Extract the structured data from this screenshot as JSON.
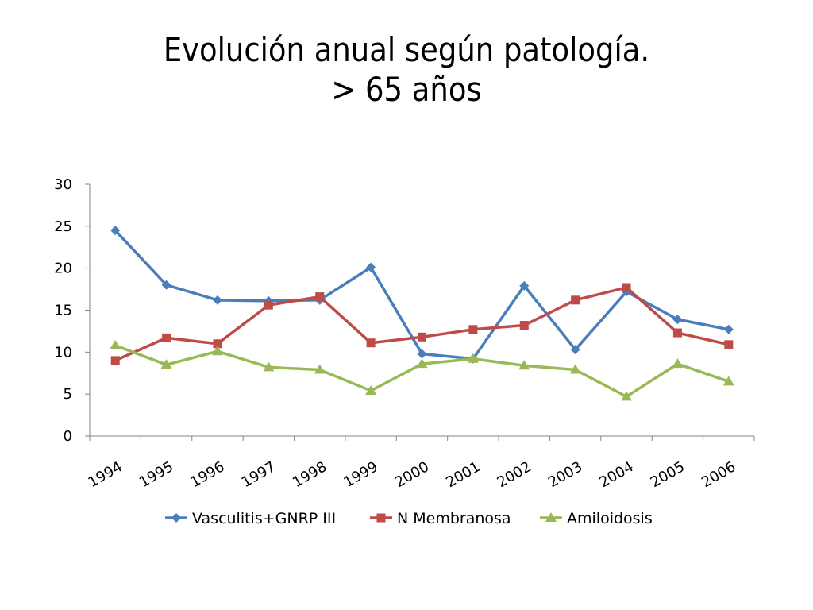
{
  "title_line1": "Evolución anual según patología.",
  "title_line2": "> 65 años",
  "chart_data": {
    "type": "line",
    "x": [
      "1994",
      "1995",
      "1996",
      "1997",
      "1998",
      "1999",
      "2000",
      "2001",
      "2002",
      "2003",
      "2004",
      "2005",
      "2006"
    ],
    "ylim": [
      0,
      30
    ],
    "yticks": [
      "0",
      "5",
      "10",
      "15",
      "20",
      "25",
      "30"
    ],
    "grid": false,
    "legend": "bottom",
    "series": [
      {
        "name": "Vasculitis+GNRP III",
        "color": "#4a7ebb",
        "marker": "diamond",
        "values": [
          24.5,
          18.0,
          16.2,
          16.1,
          16.2,
          20.1,
          9.8,
          9.2,
          17.9,
          10.3,
          17.2,
          13.9,
          12.7
        ]
      },
      {
        "name": "N Membranosa",
        "color": "#be4b48",
        "marker": "square",
        "values": [
          9.0,
          11.7,
          11.0,
          15.6,
          16.6,
          11.1,
          11.8,
          12.7,
          13.2,
          16.2,
          17.7,
          12.3,
          10.9
        ]
      },
      {
        "name": "Amiloidosis",
        "color": "#98b954",
        "marker": "triangle",
        "values": [
          10.8,
          8.5,
          10.1,
          8.2,
          7.9,
          5.4,
          8.6,
          9.2,
          8.4,
          7.9,
          4.7,
          8.6,
          6.5
        ]
      }
    ]
  }
}
